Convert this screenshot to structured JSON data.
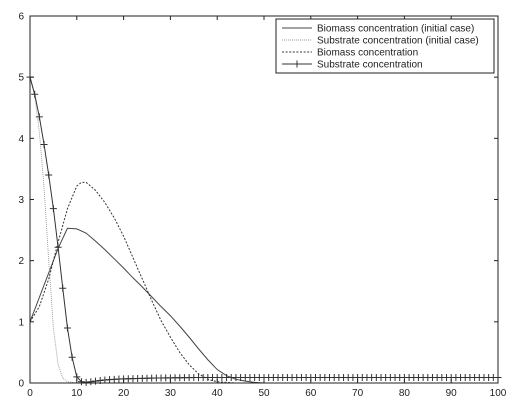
{
  "chart_data": {
    "type": "line",
    "title": "",
    "xlabel": "",
    "ylabel": "",
    "xlim": [
      0,
      100
    ],
    "ylim": [
      0,
      6
    ],
    "grid": false,
    "legend_position": "top-right",
    "x_ticks": [
      "0",
      "10",
      "20",
      "30",
      "40",
      "50",
      "60",
      "70",
      "80",
      "90",
      "100"
    ],
    "y_ticks": [
      "0",
      "1",
      "2",
      "3",
      "4",
      "5",
      "6"
    ],
    "series": [
      {
        "name": "Biomass concentration (initial case)",
        "style": "solid",
        "color": "#444444",
        "marker": "none",
        "x": [
          0,
          2,
          4,
          6,
          8,
          10,
          12,
          14,
          16,
          18,
          20,
          22,
          24,
          26,
          28,
          30,
          32,
          34,
          36,
          38,
          40,
          42,
          44,
          46,
          48,
          50,
          60,
          70,
          80,
          90,
          100
        ],
        "y": [
          1.0,
          1.4,
          1.8,
          2.2,
          2.53,
          2.52,
          2.45,
          2.32,
          2.18,
          2.03,
          1.88,
          1.72,
          1.57,
          1.41,
          1.25,
          1.1,
          0.93,
          0.75,
          0.56,
          0.38,
          0.22,
          0.12,
          0.06,
          0.03,
          0.01,
          0.0,
          0.0,
          0.0,
          0.0,
          0.0,
          0.0
        ]
      },
      {
        "name": "Substrate concentration (initial case)",
        "style": "dotted-light",
        "color": "#999999",
        "marker": "none",
        "x": [
          0,
          1,
          2,
          3,
          4,
          5,
          6,
          7,
          8,
          10,
          20,
          40,
          60,
          80,
          100
        ],
        "y": [
          5.0,
          4.7,
          4.1,
          3.2,
          2.0,
          0.9,
          0.3,
          0.08,
          0.02,
          0.0,
          0.0,
          0.0,
          0.0,
          0.0,
          0.0
        ]
      },
      {
        "name": "Biomass concentration",
        "style": "dashed",
        "color": "#333333",
        "marker": "none",
        "x": [
          0,
          2,
          4,
          6,
          8,
          10,
          11,
          12,
          14,
          16,
          18,
          20,
          22,
          24,
          26,
          28,
          30,
          32,
          34,
          36,
          38,
          40,
          44,
          50,
          60,
          70,
          80,
          90,
          100
        ],
        "y": [
          1.0,
          1.25,
          1.7,
          2.3,
          2.85,
          3.22,
          3.28,
          3.28,
          3.15,
          2.95,
          2.7,
          2.4,
          2.05,
          1.7,
          1.35,
          1.02,
          0.75,
          0.5,
          0.3,
          0.15,
          0.06,
          0.02,
          0.0,
          0.0,
          0.0,
          0.0,
          0.0,
          0.0,
          0.0
        ]
      },
      {
        "name": "Substrate concentration",
        "style": "solid",
        "color": "#333333",
        "marker": "plus",
        "x": [
          0,
          1,
          2,
          3,
          4,
          5,
          6,
          7,
          8,
          9,
          10,
          11,
          12,
          13,
          14,
          15,
          16,
          17,
          18,
          19,
          20,
          21,
          22,
          23,
          24,
          25,
          26,
          27,
          28,
          29,
          30,
          31,
          32,
          33,
          34,
          35,
          36,
          37,
          38,
          39,
          40,
          41,
          42,
          43,
          44,
          45,
          46,
          47,
          48,
          49,
          50,
          51,
          52,
          53,
          54,
          55,
          56,
          57,
          58,
          59,
          60,
          61,
          62,
          63,
          64,
          65,
          66,
          67,
          68,
          69,
          70,
          71,
          72,
          73,
          74,
          75,
          76,
          77,
          78,
          79,
          80,
          81,
          82,
          83,
          84,
          85,
          86,
          87,
          88,
          89,
          90,
          91,
          92,
          93,
          94,
          95,
          96,
          97,
          98,
          99,
          100
        ],
        "y": [
          5.0,
          4.72,
          4.35,
          3.9,
          3.4,
          2.85,
          2.22,
          1.55,
          0.9,
          0.42,
          0.1,
          0.02,
          0.01,
          0.02,
          0.03,
          0.04,
          0.05,
          0.055,
          0.06,
          0.065,
          0.068,
          0.07,
          0.072,
          0.074,
          0.076,
          0.078,
          0.08,
          0.081,
          0.082,
          0.083,
          0.084,
          0.085,
          0.086,
          0.087,
          0.088,
          0.089,
          0.09,
          0.09,
          0.09,
          0.09,
          0.09,
          0.09,
          0.09,
          0.09,
          0.09,
          0.09,
          0.09,
          0.09,
          0.09,
          0.09,
          0.09,
          0.09,
          0.09,
          0.09,
          0.09,
          0.09,
          0.09,
          0.09,
          0.09,
          0.09,
          0.09,
          0.09,
          0.09,
          0.09,
          0.09,
          0.09,
          0.09,
          0.09,
          0.09,
          0.09,
          0.09,
          0.09,
          0.09,
          0.09,
          0.09,
          0.09,
          0.09,
          0.09,
          0.09,
          0.09,
          0.09,
          0.09,
          0.09,
          0.09,
          0.09,
          0.09,
          0.09,
          0.09,
          0.09,
          0.09,
          0.09,
          0.09,
          0.09,
          0.09,
          0.09,
          0.09,
          0.09,
          0.09,
          0.09,
          0.09,
          0.09
        ]
      }
    ]
  }
}
